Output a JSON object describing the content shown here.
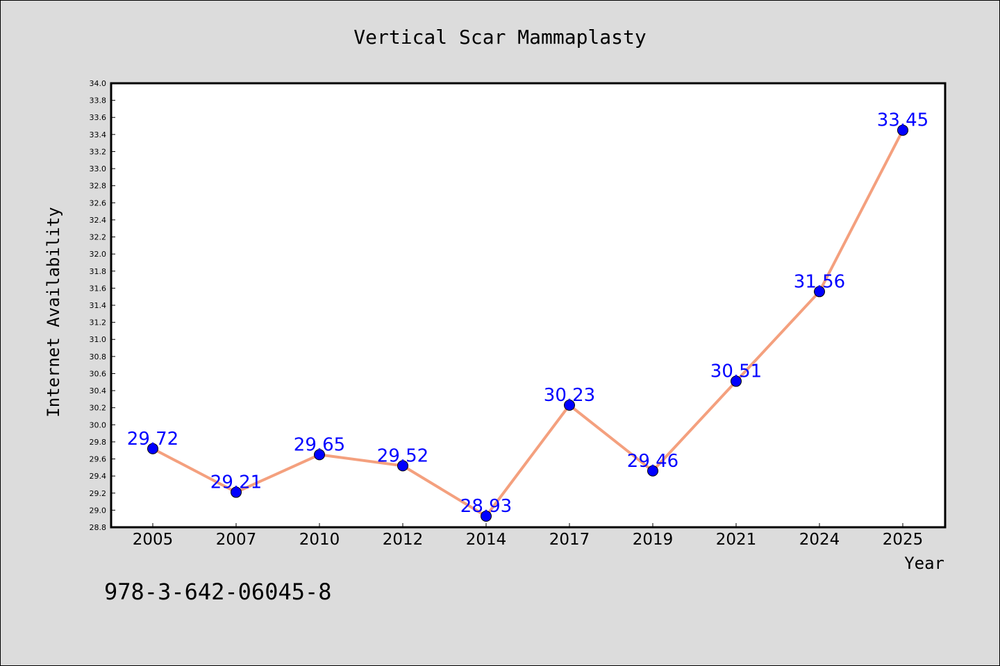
{
  "chart_data": {
    "type": "line",
    "title": "Vertical Scar Mammaplasty",
    "xlabel": "Year",
    "ylabel": "Internet Availability",
    "categories": [
      "2005",
      "2007",
      "2010",
      "2012",
      "2014",
      "2017",
      "2019",
      "2021",
      "2024",
      "2025"
    ],
    "series": [
      {
        "values": [
          29.72,
          29.21,
          29.65,
          29.52,
          28.93,
          30.23,
          29.46,
          30.51,
          31.56,
          33.45
        ],
        "labels": [
          "29.72",
          "29.21",
          "29.65",
          "29.52",
          "28.93",
          "30.23",
          "29.46",
          "30.51",
          "31.56",
          "33.45"
        ]
      }
    ],
    "ylim": [
      28.8,
      34.0
    ],
    "yticks": [
      "28.8",
      "29.0",
      "29.2",
      "29.4",
      "29.6",
      "29.8",
      "30.0",
      "30.2",
      "30.4",
      "30.6",
      "30.8",
      "31.0",
      "31.2",
      "31.4",
      "31.6",
      "31.8",
      "32.0",
      "32.2",
      "32.4",
      "32.6",
      "32.8",
      "33.0",
      "33.2",
      "33.4",
      "33.6",
      "33.8",
      "34.0"
    ],
    "grid": false,
    "legend": "none",
    "colors": {
      "line": "#f4a07e",
      "marker": "#0000ff",
      "data_label": "#0000ff",
      "plot_bg": "#ffffff",
      "page_bg": "#dcdcdc"
    }
  },
  "annotation": "978-3-642-06045-8"
}
